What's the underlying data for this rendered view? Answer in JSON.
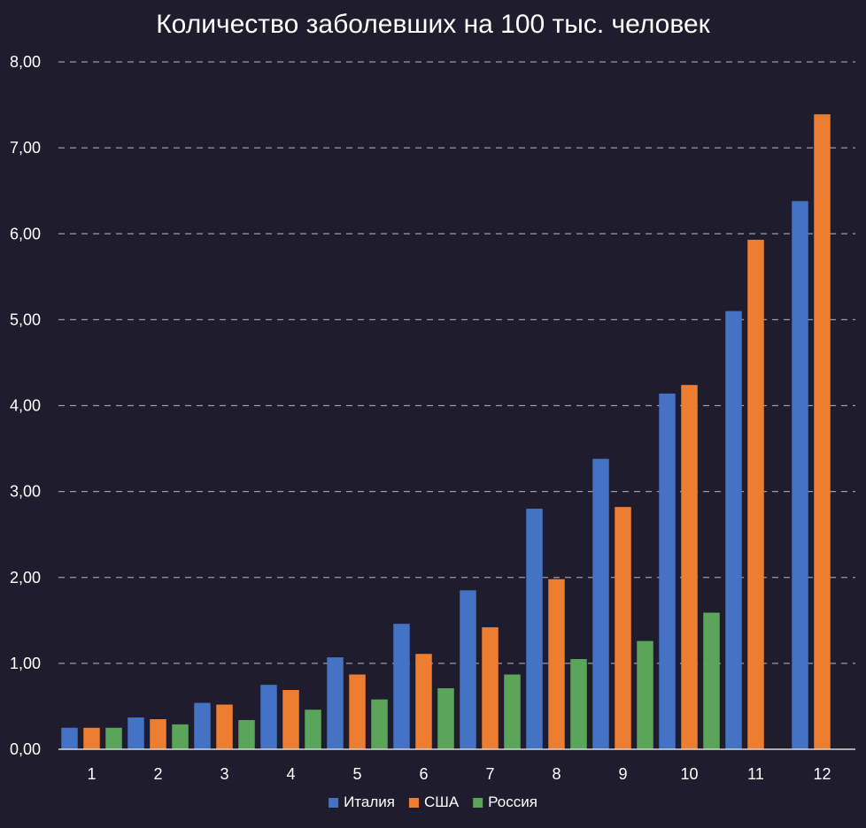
{
  "chart_data": {
    "type": "bar",
    "title": "Количество заболевших на 100 тыс. человек",
    "xlabel": "",
    "ylabel": "",
    "categories": [
      "1",
      "2",
      "3",
      "4",
      "5",
      "6",
      "7",
      "8",
      "9",
      "10",
      "11",
      "12"
    ],
    "series": [
      {
        "name": "Италия",
        "color": "#4472c4",
        "values": [
          0.25,
          0.37,
          0.54,
          0.75,
          1.07,
          1.46,
          1.85,
          2.8,
          3.38,
          4.14,
          5.1,
          6.38
        ]
      },
      {
        "name": "США",
        "color": "#ed7d31",
        "values": [
          0.25,
          0.35,
          0.52,
          0.69,
          0.87,
          1.11,
          1.42,
          1.98,
          2.82,
          4.24,
          5.93,
          7.39
        ]
      },
      {
        "name": "Россия",
        "color": "#5ba55b",
        "values": [
          0.25,
          0.29,
          0.34,
          0.46,
          0.58,
          0.71,
          0.87,
          1.05,
          1.26,
          1.59,
          null,
          null
        ]
      }
    ],
    "ylim": [
      0,
      8
    ],
    "yticks": [
      0,
      1,
      2,
      3,
      4,
      5,
      6,
      7,
      8
    ],
    "ytick_labels": [
      "0,00",
      "1,00",
      "2,00",
      "3,00",
      "4,00",
      "5,00",
      "6,00",
      "7,00",
      "8,00"
    ],
    "grid": true,
    "legend_position": "bottom"
  }
}
